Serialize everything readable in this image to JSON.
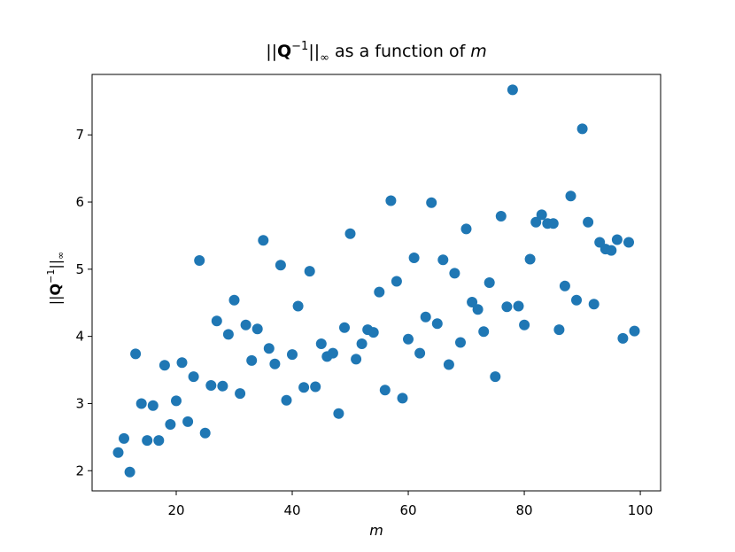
{
  "chart_data": {
    "type": "scatter",
    "title_prefix": "||",
    "title_bold": "Q",
    "title_sup": "−1",
    "title_after": "||",
    "title_sub": "∞",
    "title_rest": " as a function of ",
    "title_var": "m",
    "xlabel": "m",
    "ylabel_prefix": "||",
    "ylabel_bold": "Q",
    "ylabel_sup": "−1",
    "ylabel_after": "||",
    "ylabel_sub": "∞",
    "xlim": [
      5.5,
      103.5
    ],
    "ylim": [
      1.7,
      7.9
    ],
    "xticks": [
      20,
      40,
      60,
      80,
      100
    ],
    "yticks": [
      2,
      3,
      4,
      5,
      6,
      7
    ],
    "grid": false,
    "color": "#1f77b4",
    "x": [
      10,
      11,
      12,
      13,
      14,
      15,
      16,
      17,
      18,
      19,
      20,
      21,
      22,
      23,
      24,
      25,
      26,
      27,
      28,
      29,
      30,
      31,
      32,
      33,
      34,
      35,
      36,
      37,
      38,
      39,
      40,
      41,
      42,
      43,
      44,
      45,
      46,
      47,
      48,
      49,
      50,
      51,
      52,
      53,
      54,
      55,
      56,
      57,
      58,
      59,
      60,
      61,
      62,
      63,
      64,
      65,
      66,
      67,
      68,
      69,
      70,
      71,
      72,
      73,
      74,
      75,
      76,
      77,
      78,
      79,
      80,
      81,
      82,
      83,
      84,
      85,
      86,
      87,
      88,
      89,
      90,
      91,
      92,
      93,
      94,
      95,
      96,
      97,
      98,
      99
    ],
    "y": [
      2.27,
      2.48,
      1.98,
      3.74,
      3.0,
      2.45,
      2.97,
      2.45,
      3.57,
      2.69,
      3.04,
      3.61,
      2.73,
      3.4,
      5.13,
      2.56,
      3.27,
      4.23,
      3.26,
      4.03,
      4.54,
      3.15,
      4.17,
      3.64,
      4.11,
      5.43,
      3.82,
      3.59,
      5.06,
      3.05,
      3.73,
      4.45,
      3.24,
      4.97,
      3.25,
      3.89,
      3.7,
      3.75,
      2.85,
      4.13,
      5.53,
      3.66,
      3.89,
      4.1,
      4.06,
      4.66,
      3.2,
      6.02,
      4.82,
      3.08,
      3.96,
      5.17,
      3.75,
      4.29,
      5.99,
      4.19,
      5.14,
      3.58,
      4.94,
      3.91,
      5.6,
      4.51,
      4.4,
      4.07,
      4.8,
      3.4,
      5.79,
      4.44,
      7.67,
      4.45,
      4.17,
      5.15,
      5.7,
      5.81,
      5.68,
      5.68,
      4.1,
      4.75,
      6.09,
      4.54,
      7.09,
      5.7,
      4.48,
      5.4,
      5.3,
      5.28,
      5.44,
      3.97,
      5.4,
      4.08
    ]
  }
}
